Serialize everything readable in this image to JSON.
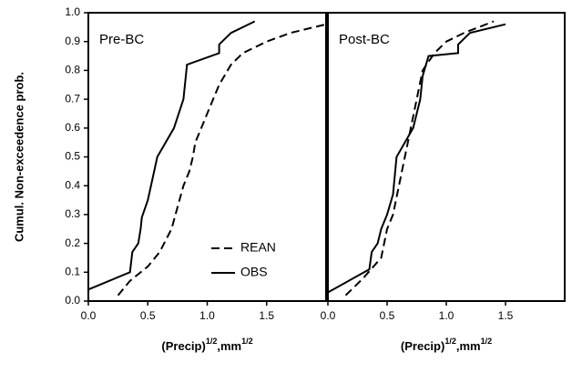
{
  "chart_data": [
    {
      "type": "line",
      "title": "Pre-BC",
      "y_label": "Cumul. Non-exceedence prob.",
      "x_label": {
        "base": "(Precip)",
        "sup": "1/2",
        "unit": ",mm",
        "unit_sup": "1/2"
      },
      "xlim": [
        0,
        2
      ],
      "xticks": [
        {
          "value": 0,
          "label": "0.0"
        },
        0.5,
        {
          "value": 1,
          "label": "1.0"
        },
        1.5
      ],
      "ylim": [
        0,
        1
      ],
      "yticks": [
        {
          "value": 0,
          "label": "0.0"
        },
        0.1,
        0.2,
        0.3,
        0.4,
        0.5,
        0.6,
        0.7,
        0.8,
        0.9,
        {
          "value": 1,
          "label": "1.0"
        }
      ],
      "legend": "lower right",
      "series": [
        {
          "name": "REAN",
          "color": "#000000",
          "dash": true,
          "x": [
            0.25,
            0.35,
            0.5,
            0.6,
            0.7,
            0.8,
            0.85,
            0.88,
            0.9,
            0.95,
            1.0,
            1.05,
            1.1,
            1.2,
            1.3,
            1.5,
            1.7,
            2.0
          ],
          "values": [
            0.02,
            0.07,
            0.12,
            0.17,
            0.25,
            0.4,
            0.45,
            0.5,
            0.55,
            0.6,
            0.65,
            0.7,
            0.75,
            0.82,
            0.86,
            0.9,
            0.93,
            0.96
          ]
        },
        {
          "name": "OBS",
          "color": "#000000",
          "dash": false,
          "x": [
            0.0,
            0.35,
            0.37,
            0.42,
            0.44,
            0.45,
            0.5,
            0.58,
            0.72,
            0.8,
            0.83,
            1.1,
            1.1,
            1.2,
            1.4
          ],
          "values": [
            0.04,
            0.1,
            0.17,
            0.2,
            0.25,
            0.29,
            0.35,
            0.5,
            0.6,
            0.7,
            0.82,
            0.86,
            0.89,
            0.93,
            0.97
          ]
        }
      ]
    },
    {
      "type": "line",
      "title": "Post-BC",
      "x_label": {
        "base": "(Precip)",
        "sup": "1/2",
        "unit": ",mm",
        "unit_sup": "1/2"
      },
      "xlim": [
        0,
        2
      ],
      "xticks": [
        {
          "value": 0,
          "label": "0.0"
        },
        0.5,
        {
          "value": 1,
          "label": "1.0"
        },
        1.5
      ],
      "ylim": [
        0,
        1
      ],
      "series": [
        {
          "name": "REAN",
          "color": "#000000",
          "dash": true,
          "x": [
            0.15,
            0.3,
            0.45,
            0.5,
            0.55,
            0.6,
            0.65,
            0.7,
            0.75,
            0.8,
            0.9,
            1.0,
            1.15,
            1.4
          ],
          "values": [
            0.02,
            0.08,
            0.15,
            0.25,
            0.3,
            0.4,
            0.5,
            0.6,
            0.7,
            0.8,
            0.86,
            0.9,
            0.93,
            0.97
          ]
        },
        {
          "name": "OBS",
          "color": "#000000",
          "dash": false,
          "x": [
            0.0,
            0.35,
            0.37,
            0.42,
            0.45,
            0.5,
            0.55,
            0.58,
            0.72,
            0.78,
            0.8,
            0.85,
            1.1,
            1.1,
            1.2,
            1.5
          ],
          "values": [
            0.03,
            0.11,
            0.17,
            0.2,
            0.25,
            0.3,
            0.37,
            0.5,
            0.6,
            0.7,
            0.78,
            0.85,
            0.86,
            0.89,
            0.93,
            0.96
          ]
        }
      ]
    }
  ]
}
